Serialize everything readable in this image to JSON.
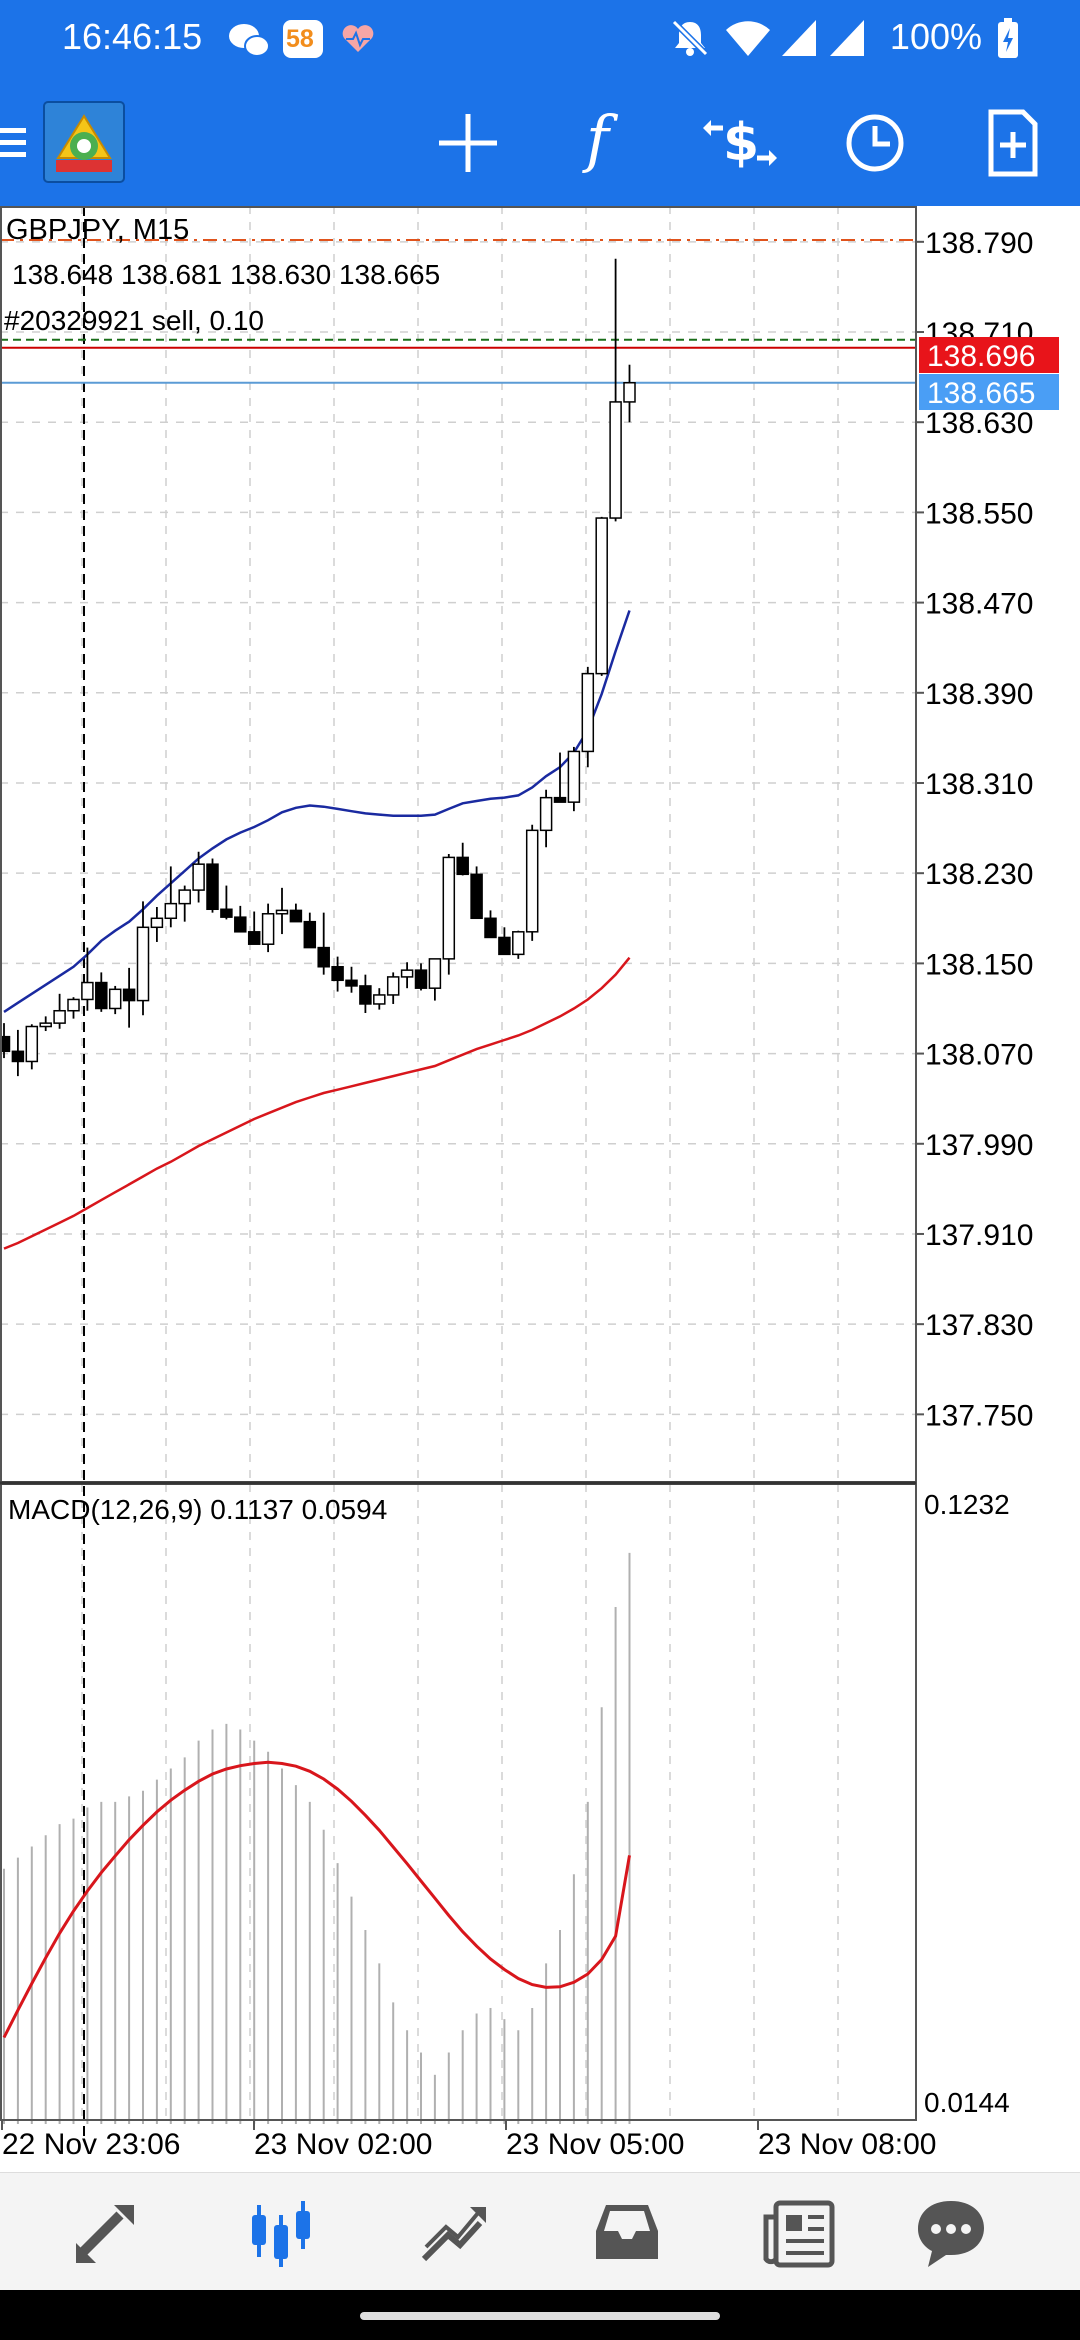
{
  "status_bar": {
    "time": "16:46:15",
    "notification_badge": "58",
    "battery": "100%",
    "icons": [
      "wechat-icon",
      "app-58-icon",
      "health-icon",
      "mute-icon",
      "wifi-icon",
      "signal-icon",
      "signal-icon-2",
      "battery-icon"
    ]
  },
  "toolbar": {
    "buttons": [
      "menu-icon",
      "metatrader-logo",
      "crosshair-icon",
      "indicators-icon",
      "symbols-icon",
      "timeframe-icon",
      "new-order-icon"
    ],
    "indicators_glyph": "f"
  },
  "chart": {
    "symbol_title": "GBPJPY, M15",
    "ohlc": "138.648 138.681 138.630 138.665",
    "order_label": "#20329921 sell, 0.10",
    "price_ticks": [
      "138.790",
      "138.710",
      "138.630",
      "138.550",
      "138.470",
      "138.390",
      "138.310",
      "138.230",
      "138.150",
      "138.070",
      "137.990",
      "137.910",
      "137.830",
      "137.750"
    ],
    "order_price": "138.696",
    "bid_price": "138.665",
    "macd_label": "MACD(12,26,9) 0.1137 0.0594",
    "macd_max": "0.1232",
    "macd_min": "0.0144",
    "time_labels": [
      "22 Nov 23:06",
      "23 Nov 02:00",
      "23 Nov 05:00",
      "23 Nov 08:00"
    ],
    "colors": {
      "bull": "#ffffff",
      "bear": "#000000",
      "ma_fast": "#1a2aa0",
      "ma_slow": "#d8161c",
      "order_line": "#cc0000",
      "bid_line": "#5b9bd5",
      "order_tag": "#e8141a",
      "bid_tag": "#4a9ef5",
      "macd_signal": "#d8161c",
      "macd_hist": "#b0b0b0"
    }
  },
  "chart_data": {
    "type": "candlestick",
    "symbol": "GBPJPY",
    "timeframe": "M15",
    "price_range": [
      137.69,
      138.82
    ],
    "candles": [
      [
        138.085,
        138.097,
        138.066,
        138.072
      ],
      [
        138.072,
        138.091,
        138.05,
        138.063
      ],
      [
        138.063,
        138.096,
        138.056,
        138.094
      ],
      [
        138.094,
        138.103,
        138.09,
        138.097
      ],
      [
        138.097,
        138.123,
        138.092,
        138.108
      ],
      [
        138.108,
        138.12,
        138.101,
        138.118
      ],
      [
        138.118,
        138.164,
        138.108,
        138.133
      ],
      [
        138.133,
        138.142,
        138.107,
        138.11
      ],
      [
        138.11,
        138.13,
        138.105,
        138.127
      ],
      [
        138.127,
        138.146,
        138.093,
        138.117
      ],
      [
        138.117,
        138.205,
        138.104,
        138.182
      ],
      [
        138.182,
        138.2,
        138.169,
        138.19
      ],
      [
        138.19,
        138.236,
        138.182,
        138.203
      ],
      [
        138.203,
        138.219,
        138.187,
        138.215
      ],
      [
        138.215,
        138.249,
        138.204,
        138.238
      ],
      [
        138.238,
        138.243,
        138.195,
        138.198
      ],
      [
        138.198,
        138.219,
        138.189,
        138.191
      ],
      [
        138.191,
        138.201,
        138.181,
        138.178
      ],
      [
        138.178,
        138.196,
        138.174,
        138.167
      ],
      [
        138.167,
        138.203,
        138.16,
        138.194
      ],
      [
        138.194,
        138.217,
        138.176,
        138.197
      ],
      [
        138.197,
        138.203,
        138.189,
        138.187
      ],
      [
        138.187,
        138.195,
        138.164,
        138.164
      ],
      [
        138.164,
        138.195,
        138.14,
        138.147
      ],
      [
        138.147,
        138.156,
        138.125,
        138.135
      ],
      [
        138.135,
        138.147,
        138.124,
        138.13
      ],
      [
        138.13,
        138.14,
        138.106,
        138.114
      ],
      [
        138.114,
        138.128,
        138.109,
        138.122
      ],
      [
        138.122,
        138.142,
        138.114,
        138.138
      ],
      [
        138.138,
        138.151,
        138.128,
        138.144
      ],
      [
        138.144,
        138.15,
        138.126,
        138.128
      ],
      [
        138.128,
        138.151,
        138.117,
        138.154
      ],
      [
        138.154,
        138.247,
        138.14,
        138.244
      ],
      [
        138.244,
        138.257,
        138.228,
        138.229
      ],
      [
        138.229,
        138.236,
        138.193,
        138.19
      ],
      [
        138.19,
        138.197,
        138.173,
        138.173
      ],
      [
        138.173,
        138.182,
        138.16,
        138.158
      ],
      [
        138.158,
        138.179,
        138.154,
        138.178
      ],
      [
        138.178,
        138.273,
        138.17,
        138.268
      ],
      [
        138.268,
        138.304,
        138.253,
        138.297
      ],
      [
        138.297,
        138.337,
        138.295,
        138.293
      ],
      [
        138.293,
        138.342,
        138.285,
        138.338
      ],
      [
        138.338,
        138.413,
        138.324,
        138.407
      ],
      [
        138.407,
        138.546,
        138.405,
        138.545
      ],
      [
        138.545,
        138.775,
        138.542,
        138.648
      ],
      [
        138.648,
        138.681,
        138.63,
        138.665
      ]
    ],
    "ma_fast": [
      138.107,
      138.115,
      138.123,
      138.131,
      138.139,
      138.147,
      138.158,
      138.17,
      138.179,
      138.187,
      138.198,
      138.21,
      138.221,
      138.232,
      138.243,
      138.252,
      138.26,
      138.266,
      138.271,
      138.277,
      138.284,
      138.288,
      138.29,
      138.289,
      138.287,
      138.285,
      138.283,
      138.282,
      138.281,
      138.281,
      138.281,
      138.282,
      138.287,
      138.292,
      138.294,
      138.296,
      138.297,
      138.299,
      138.306,
      138.316,
      138.324,
      138.337,
      138.357,
      138.389,
      138.427,
      138.463
    ],
    "ma_slow": [
      137.897,
      137.902,
      137.908,
      137.914,
      137.92,
      137.926,
      137.933,
      137.94,
      137.947,
      137.954,
      137.961,
      137.968,
      137.974,
      137.981,
      137.988,
      137.994,
      138.0,
      138.006,
      138.012,
      138.017,
      138.022,
      138.027,
      138.031,
      138.035,
      138.038,
      138.041,
      138.044,
      138.047,
      138.05,
      138.053,
      138.056,
      138.059,
      138.064,
      138.069,
      138.074,
      138.078,
      138.082,
      138.086,
      138.091,
      138.097,
      138.103,
      138.11,
      138.118,
      138.128,
      138.14,
      138.155
    ],
    "macd_range": [
      0.0144,
      0.1232
    ],
    "macd_hist": [
      0.057,
      0.059,
      0.061,
      0.063,
      0.065,
      0.066,
      0.068,
      0.069,
      0.069,
      0.07,
      0.071,
      0.073,
      0.075,
      0.077,
      0.08,
      0.082,
      0.083,
      0.082,
      0.08,
      0.078,
      0.075,
      0.072,
      0.069,
      0.064,
      0.058,
      0.052,
      0.046,
      0.04,
      0.033,
      0.028,
      0.024,
      0.02,
      0.024,
      0.028,
      0.031,
      0.032,
      0.03,
      0.028,
      0.032,
      0.04,
      0.046,
      0.056,
      0.069,
      0.086,
      0.104,
      0.1137
    ],
    "macd_signal": [
      0.0267,
      0.0316,
      0.0364,
      0.041,
      0.0454,
      0.0494,
      0.053,
      0.0563,
      0.0593,
      0.0622,
      0.0648,
      0.0672,
      0.0693,
      0.0711,
      0.0727,
      0.074,
      0.0749,
      0.0755,
      0.0759,
      0.0761,
      0.0759,
      0.0754,
      0.0745,
      0.0731,
      0.0713,
      0.0691,
      0.0666,
      0.0639,
      0.0609,
      0.0579,
      0.0548,
      0.0517,
      0.0486,
      0.0457,
      0.0431,
      0.0408,
      0.0389,
      0.0373,
      0.0362,
      0.0357,
      0.0358,
      0.0366,
      0.0381,
      0.0407,
      0.0449,
      0.0594
    ]
  },
  "bottom_nav": {
    "items": [
      "quotes-icon",
      "charts-icon",
      "trade-icon",
      "history-icon",
      "news-icon",
      "messages-icon"
    ],
    "active": "charts-icon"
  }
}
